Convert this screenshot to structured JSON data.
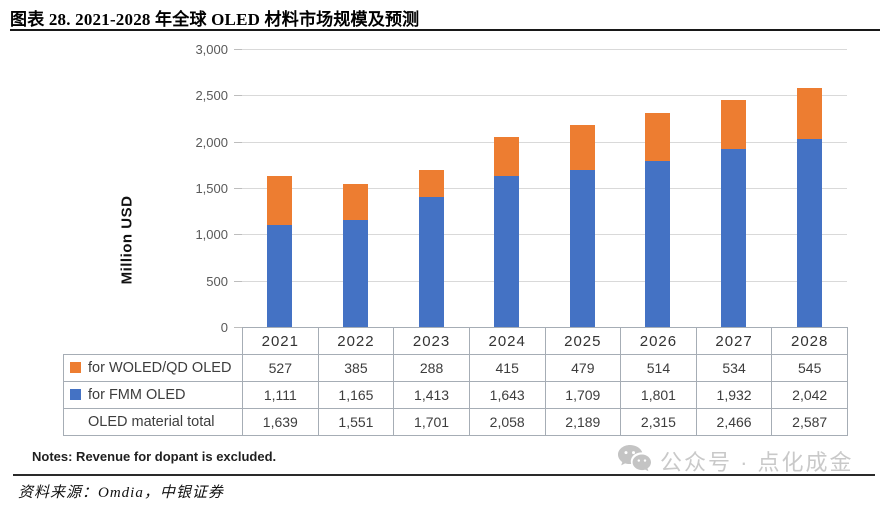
{
  "title": "图表 28. 2021-2028 年全球 OLED 材料市场规模及预测",
  "chart_data": {
    "type": "bar",
    "stacked": true,
    "title": "图表 28. 2021-2028 年全球 OLED 材料市场规模及预测",
    "categories": [
      "2021",
      "2022",
      "2023",
      "2024",
      "2025",
      "2026",
      "2027",
      "2028"
    ],
    "series": [
      {
        "name": "for WOLED/QD OLED",
        "color": "#ED7D31",
        "values": [
          527,
          385,
          288,
          415,
          479,
          514,
          534,
          545
        ]
      },
      {
        "name": "for FMM OLED",
        "color": "#4472C4",
        "values": [
          1111,
          1165,
          1413,
          1643,
          1709,
          1801,
          1932,
          2042
        ]
      }
    ],
    "totals_row": {
      "name": "OLED material total",
      "values": [
        1639,
        1551,
        1701,
        2058,
        2189,
        2315,
        2466,
        2587
      ]
    },
    "xlabel": "",
    "ylabel": "Million USD",
    "ylim": [
      0,
      3000
    ],
    "ytick_step": 500,
    "grid": true,
    "legend_position": "table-left",
    "gridline_color": "#d9d9d9"
  },
  "notes": "Notes: Revenue for dopant is excluded.",
  "source": "资料来源：Omdia，中银证券",
  "watermark": {
    "icon": "wechat-icon",
    "text": "公众号 · 点化成金"
  }
}
